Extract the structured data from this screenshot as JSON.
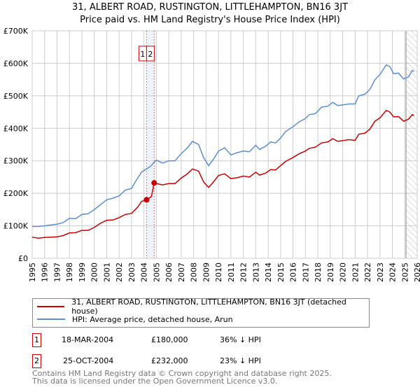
{
  "title": "31, ALBERT ROAD, RUSTINGTON, LITTLEHAMPTON, BN16 3JT",
  "subtitle": "Price paid vs. HM Land Registry's House Price Index (HPI)",
  "colors": {
    "property": "#cc0000",
    "hpi": "#5b8fd4",
    "band": "#eef3fc"
  },
  "chart_data": {
    "type": "line",
    "title": "31, ALBERT ROAD, RUSTINGTON, LITTLEHAMPTON, BN16 3JT",
    "xlim": [
      1995,
      2026
    ],
    "ylim": [
      0,
      700000
    ],
    "yticks": [
      {
        "v": 0,
        "label": "£0"
      },
      {
        "v": 100000,
        "label": "£100K"
      },
      {
        "v": 200000,
        "label": "£200K"
      },
      {
        "v": 300000,
        "label": "£300K"
      },
      {
        "v": 400000,
        "label": "£400K"
      },
      {
        "v": 500000,
        "label": "£500K"
      },
      {
        "v": 600000,
        "label": "£600K"
      },
      {
        "v": 700000,
        "label": "£700K"
      }
    ],
    "xticks": [
      "1995",
      "1996",
      "1997",
      "1998",
      "1999",
      "2000",
      "2001",
      "2002",
      "2003",
      "2004",
      "2005",
      "2006",
      "2007",
      "2008",
      "2009",
      "2010",
      "2011",
      "2012",
      "2013",
      "2014",
      "2015",
      "2016",
      "2017",
      "2018",
      "2019",
      "2020",
      "2021",
      "2022",
      "2023",
      "2024",
      "2025",
      "2026"
    ],
    "grid": true,
    "forecast_start": 2025.1,
    "series": [
      {
        "name": "31, ALBERT ROAD, RUSTINGTON, LITTLEHAMPTON, BN16 3JT (detached house)",
        "color": "#cc0000",
        "points": [
          [
            1995,
            65
          ],
          [
            1995.5,
            62
          ],
          [
            1996,
            64
          ],
          [
            1997,
            66
          ],
          [
            1997.5,
            70
          ],
          [
            1998,
            78
          ],
          [
            1998.5,
            79
          ],
          [
            1999,
            86
          ],
          [
            1999.5,
            86
          ],
          [
            2000,
            95
          ],
          [
            2000.5,
            108
          ],
          [
            2001,
            117
          ],
          [
            2001.5,
            118
          ],
          [
            2002,
            125
          ],
          [
            2002.5,
            135
          ],
          [
            2003,
            138
          ],
          [
            2003.5,
            158
          ],
          [
            2003.8,
            175
          ],
          [
            2004.21,
            180
          ],
          [
            2004.6,
            190
          ],
          [
            2004.82,
            232
          ],
          [
            2005,
            230
          ],
          [
            2005.5,
            226
          ],
          [
            2006,
            230
          ],
          [
            2006.5,
            230
          ],
          [
            2007,
            247
          ],
          [
            2007.5,
            260
          ],
          [
            2007.9,
            275
          ],
          [
            2008.4,
            268
          ],
          [
            2008.8,
            235
          ],
          [
            2009.2,
            218
          ],
          [
            2009.6,
            235
          ],
          [
            2010,
            255
          ],
          [
            2010.5,
            260
          ],
          [
            2011,
            245
          ],
          [
            2011.5,
            248
          ],
          [
            2012,
            253
          ],
          [
            2012.5,
            250
          ],
          [
            2013,
            265
          ],
          [
            2013.3,
            256
          ],
          [
            2013.8,
            262
          ],
          [
            2014.2,
            273
          ],
          [
            2014.6,
            272
          ],
          [
            2015,
            285
          ],
          [
            2015.4,
            298
          ],
          [
            2016,
            310
          ],
          [
            2016.5,
            322
          ],
          [
            2017,
            330
          ],
          [
            2017.3,
            338
          ],
          [
            2017.8,
            342
          ],
          [
            2018.3,
            355
          ],
          [
            2018.8,
            358
          ],
          [
            2019.2,
            368
          ],
          [
            2019.6,
            360
          ],
          [
            2020,
            362
          ],
          [
            2020.5,
            365
          ],
          [
            2021,
            363
          ],
          [
            2021.3,
            382
          ],
          [
            2021.8,
            385
          ],
          [
            2022.2,
            398
          ],
          [
            2022.6,
            422
          ],
          [
            2023,
            432
          ],
          [
            2023.5,
            455
          ],
          [
            2023.8,
            450
          ],
          [
            2024.1,
            435
          ],
          [
            2024.5,
            436
          ],
          [
            2024.9,
            422
          ],
          [
            2025.3,
            428
          ],
          [
            2025.6,
            442
          ],
          [
            2025.75,
            440
          ]
        ]
      },
      {
        "name": "HPI: Average price, detached house, Arun",
        "color": "#5b8fd4",
        "points": [
          [
            1995,
            98
          ],
          [
            1995.5,
            98
          ],
          [
            1996,
            100
          ],
          [
            1997,
            105
          ],
          [
            1997.5,
            110
          ],
          [
            1998,
            123
          ],
          [
            1998.5,
            122
          ],
          [
            1999,
            135
          ],
          [
            1999.5,
            137
          ],
          [
            2000,
            150
          ],
          [
            2000.5,
            165
          ],
          [
            2001,
            180
          ],
          [
            2001.5,
            185
          ],
          [
            2002,
            192
          ],
          [
            2002.5,
            210
          ],
          [
            2003,
            215
          ],
          [
            2003.3,
            235
          ],
          [
            2003.8,
            265
          ],
          [
            2004.2,
            275
          ],
          [
            2004.5,
            282
          ],
          [
            2004.8,
            295
          ],
          [
            2005,
            302
          ],
          [
            2005.5,
            293
          ],
          [
            2006,
            300
          ],
          [
            2006.5,
            300
          ],
          [
            2007,
            322
          ],
          [
            2007.5,
            340
          ],
          [
            2007.9,
            360
          ],
          [
            2008.4,
            350
          ],
          [
            2008.8,
            310
          ],
          [
            2009.2,
            285
          ],
          [
            2009.6,
            305
          ],
          [
            2010,
            330
          ],
          [
            2010.5,
            340
          ],
          [
            2011,
            318
          ],
          [
            2011.5,
            325
          ],
          [
            2012,
            330
          ],
          [
            2012.5,
            328
          ],
          [
            2013,
            348
          ],
          [
            2013.3,
            335
          ],
          [
            2013.8,
            345
          ],
          [
            2014.2,
            358
          ],
          [
            2014.6,
            355
          ],
          [
            2015,
            370
          ],
          [
            2015.4,
            390
          ],
          [
            2016,
            405
          ],
          [
            2016.5,
            420
          ],
          [
            2017,
            430
          ],
          [
            2017.3,
            442
          ],
          [
            2017.8,
            445
          ],
          [
            2018.3,
            465
          ],
          [
            2018.8,
            468
          ],
          [
            2019.2,
            480
          ],
          [
            2019.6,
            470
          ],
          [
            2020,
            472
          ],
          [
            2020.5,
            475
          ],
          [
            2021,
            475
          ],
          [
            2021.3,
            500
          ],
          [
            2021.8,
            505
          ],
          [
            2022.2,
            520
          ],
          [
            2022.6,
            550
          ],
          [
            2023,
            565
          ],
          [
            2023.5,
            595
          ],
          [
            2023.8,
            590
          ],
          [
            2024.1,
            568
          ],
          [
            2024.5,
            570
          ],
          [
            2024.9,
            552
          ],
          [
            2025.3,
            558
          ],
          [
            2025.6,
            578
          ],
          [
            2025.75,
            575
          ]
        ]
      }
    ],
    "point_units": "thousands GBP",
    "sales": [
      {
        "label": "1",
        "x": 2004.21,
        "y": 180
      },
      {
        "label": "2",
        "x": 2004.82,
        "y": 232
      }
    ]
  },
  "legend": {
    "property": "31, ALBERT ROAD, RUSTINGTON, LITTLEHAMPTON, BN16 3JT (detached house)",
    "hpi": "HPI: Average price, detached house, Arun"
  },
  "transactions": [
    {
      "num": "1",
      "date": "18-MAR-2004",
      "price": "£180,000",
      "hpi": "36% ↓ HPI"
    },
    {
      "num": "2",
      "date": "25-OCT-2004",
      "price": "£232,000",
      "hpi": "23% ↓ HPI"
    }
  ],
  "footer": {
    "line1": "Contains HM Land Registry data © Crown copyright and database right 2025.",
    "line2": "This data is licensed under the Open Government Licence v3.0."
  }
}
